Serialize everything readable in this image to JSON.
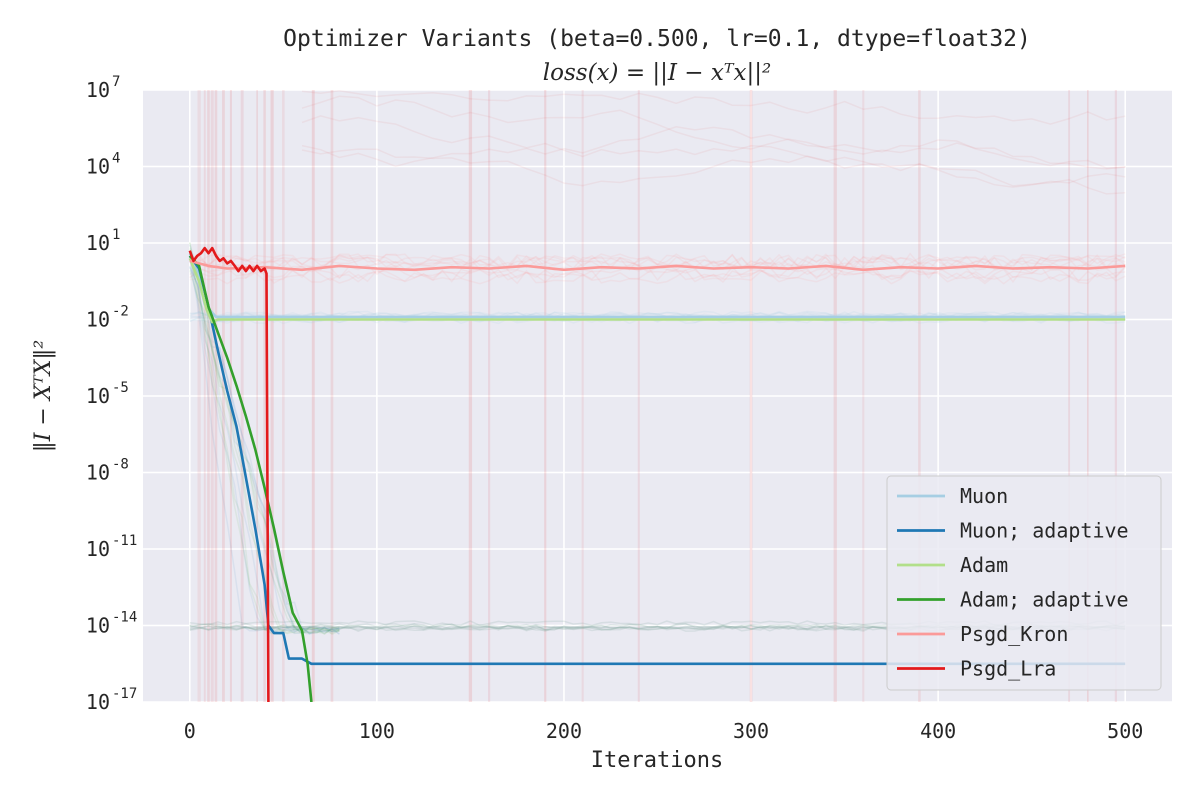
{
  "chart_data": {
    "type": "line",
    "title": "Optimizer Variants (beta=0.500, lr=0.1, dtype=float32)",
    "subtitle": "loss(x) = ||I − xᵀx||²",
    "xlabel": "Iterations",
    "ylabel": "‖I − XᵀX‖²",
    "x_range": [
      -25,
      525
    ],
    "y_scale": "log",
    "y_range_exp": [
      -17,
      7
    ],
    "x_ticks": [
      {
        "value": 0,
        "label": "0"
      },
      {
        "value": 100,
        "label": "100"
      },
      {
        "value": 200,
        "label": "200"
      },
      {
        "value": 300,
        "label": "300"
      },
      {
        "value": 400,
        "label": "400"
      },
      {
        "value": 500,
        "label": "500"
      }
    ],
    "y_ticks": [
      {
        "exp": 7,
        "base": "10",
        "sup": "7"
      },
      {
        "exp": 4,
        "base": "10",
        "sup": "4"
      },
      {
        "exp": 1,
        "base": "10",
        "sup": "1"
      },
      {
        "exp": -2,
        "base": "10",
        "sup": "-2"
      },
      {
        "exp": -5,
        "base": "10",
        "sup": "-5"
      },
      {
        "exp": -8,
        "base": "10",
        "sup": "-8"
      },
      {
        "exp": -11,
        "base": "10",
        "sup": "-11"
      },
      {
        "exp": -14,
        "base": "10",
        "sup": "-14"
      },
      {
        "exp": -17,
        "base": "10",
        "sup": "-17"
      }
    ],
    "grid": true,
    "background": "#eaeaf2",
    "legend_position": "lower-right",
    "series": [
      {
        "name": "Muon",
        "color": "#a6cee3",
        "points": [
          [
            0,
            0.6
          ],
          [
            3,
            0.2
          ],
          [
            8,
            -1.4
          ],
          [
            14,
            -1.9
          ],
          [
            100,
            -1.9
          ],
          [
            200,
            -1.9
          ],
          [
            300,
            -1.9
          ],
          [
            400,
            -1.9
          ],
          [
            500,
            -1.9
          ]
        ]
      },
      {
        "name": "Muon; adaptive",
        "color": "#1f78b4",
        "points": [
          [
            0,
            0.5
          ],
          [
            5,
            0.0
          ],
          [
            10,
            -1.5
          ],
          [
            15,
            -3.2
          ],
          [
            20,
            -4.8
          ],
          [
            25,
            -6.2
          ],
          [
            30,
            -8.2
          ],
          [
            35,
            -10.2
          ],
          [
            40,
            -12.4
          ],
          [
            42,
            -14.0
          ],
          [
            45,
            -14.3
          ],
          [
            50,
            -14.3
          ],
          [
            53,
            -15.3
          ],
          [
            60,
            -15.3
          ],
          [
            65,
            -15.5
          ],
          [
            100,
            -15.5
          ],
          [
            200,
            -15.5
          ],
          [
            300,
            -15.5
          ],
          [
            400,
            -15.5
          ],
          [
            500,
            -15.5
          ]
        ]
      },
      {
        "name": "Adam",
        "color": "#b2df8a",
        "points": [
          [
            0,
            0.4
          ],
          [
            5,
            -0.5
          ],
          [
            9,
            -1.6
          ],
          [
            12,
            -2.1
          ],
          [
            15,
            -2.0
          ],
          [
            30,
            -2.0
          ],
          [
            100,
            -2.0
          ],
          [
            200,
            -2.0
          ],
          [
            300,
            -2.0
          ],
          [
            400,
            -2.0
          ],
          [
            500,
            -2.0
          ]
        ]
      },
      {
        "name": "Adam; adaptive",
        "color": "#33a02c",
        "points": [
          [
            0,
            0.5
          ],
          [
            5,
            0.1
          ],
          [
            10,
            -1.5
          ],
          [
            15,
            -2.5
          ],
          [
            20,
            -3.5
          ],
          [
            25,
            -4.6
          ],
          [
            30,
            -5.8
          ],
          [
            35,
            -7.1
          ],
          [
            40,
            -8.6
          ],
          [
            45,
            -10.2
          ],
          [
            50,
            -11.9
          ],
          [
            55,
            -13.5
          ],
          [
            60,
            -14.2
          ],
          [
            63,
            -15.5
          ],
          [
            65,
            -17.0
          ]
        ]
      },
      {
        "name": "Psgd_Kron",
        "color": "#fb9a99",
        "points": [
          [
            0,
            0.3
          ],
          [
            10,
            0.1
          ],
          [
            20,
            0.0
          ],
          [
            40,
            0.05
          ],
          [
            60,
            -0.05
          ],
          [
            80,
            0.1
          ],
          [
            100,
            0.0
          ],
          [
            120,
            -0.05
          ],
          [
            140,
            0.05
          ],
          [
            160,
            0.0
          ],
          [
            180,
            0.1
          ],
          [
            200,
            -0.05
          ],
          [
            220,
            0.05
          ],
          [
            240,
            0.0
          ],
          [
            260,
            0.1
          ],
          [
            280,
            0.0
          ],
          [
            300,
            0.05
          ],
          [
            320,
            0.0
          ],
          [
            340,
            0.1
          ],
          [
            360,
            -0.05
          ],
          [
            380,
            0.05
          ],
          [
            400,
            0.0
          ],
          [
            420,
            0.1
          ],
          [
            440,
            0.0
          ],
          [
            460,
            0.05
          ],
          [
            480,
            0.0
          ],
          [
            500,
            0.1
          ]
        ]
      },
      {
        "name": "Psgd_Lra",
        "color": "#e31a1c",
        "points": [
          [
            0,
            0.7
          ],
          [
            2,
            0.3
          ],
          [
            4,
            0.5
          ],
          [
            6,
            0.6
          ],
          [
            8,
            0.8
          ],
          [
            10,
            0.6
          ],
          [
            12,
            0.8
          ],
          [
            14,
            0.5
          ],
          [
            16,
            0.3
          ],
          [
            18,
            0.4
          ],
          [
            20,
            0.2
          ],
          [
            22,
            0.3
          ],
          [
            24,
            0.1
          ],
          [
            26,
            -0.1
          ],
          [
            28,
            0.1
          ],
          [
            30,
            -0.1
          ],
          [
            32,
            0.1
          ],
          [
            34,
            -0.1
          ],
          [
            36,
            0.1
          ],
          [
            38,
            -0.1
          ],
          [
            40,
            0.0
          ],
          [
            41,
            -0.2
          ],
          [
            42,
            -17.0
          ]
        ]
      }
    ]
  }
}
